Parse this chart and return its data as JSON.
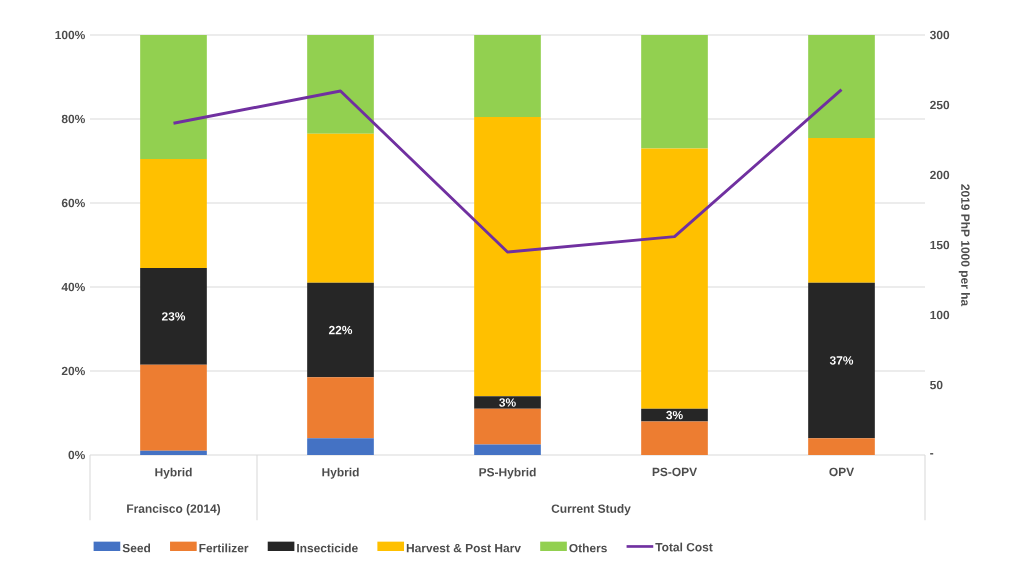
{
  "chart_data": {
    "type": "bar",
    "stacked": true,
    "categories": [
      "Hybrid",
      "Hybrid",
      "PS-Hybrid",
      "PS-OPV",
      "OPV"
    ],
    "series": [
      {
        "name": "Seed",
        "color": "#4472c4",
        "values": [
          1,
          4,
          2.5,
          0,
          0
        ]
      },
      {
        "name": "Fertilizer",
        "color": "#ed7d31",
        "values": [
          20.5,
          14.5,
          8.5,
          8,
          4
        ]
      },
      {
        "name": "Insecticide",
        "color": "#262626",
        "values": [
          23,
          22.5,
          3,
          3,
          37
        ],
        "value_labels": [
          "23%",
          "22%",
          "3%",
          "3%",
          "37%"
        ]
      },
      {
        "name": "Harvest & Post Harv",
        "color": "#ffc000",
        "values": [
          26,
          35.5,
          66.5,
          62,
          34.5
        ]
      },
      {
        "name": "Others",
        "color": "#92d050",
        "values": [
          29.5,
          23.5,
          19.5,
          27,
          24.5
        ]
      },
      {
        "name": "Total Cost",
        "color": "#7030a0",
        "type": "line",
        "axis": "y2",
        "values": [
          237,
          260,
          145,
          156,
          261
        ]
      }
    ],
    "ylim": [
      0,
      100
    ],
    "yticks": [
      {
        "value": 0,
        "label": "0%"
      },
      {
        "value": 20,
        "label": "20%"
      },
      {
        "value": 40,
        "label": "40%"
      },
      {
        "value": 60,
        "label": "60%"
      },
      {
        "value": 80,
        "label": "80%"
      },
      {
        "value": 100,
        "label": "100%"
      }
    ],
    "y2label": "2019 PhP 1000 per ha",
    "y2lim": [
      0,
      300
    ],
    "y2ticks": [
      {
        "value": 0,
        "label": "-"
      },
      50,
      100,
      150,
      200,
      250,
      300
    ],
    "annotations": [
      "Francisco (2014)",
      "Current Study"
    ],
    "grid": "y",
    "legend": "bottom"
  }
}
